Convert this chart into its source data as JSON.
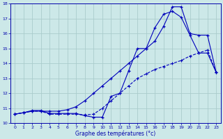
{
  "xlabel": "Graphe des températures (°c)",
  "bg_color": "#cce8e8",
  "grid_color": "#aacccc",
  "line_color": "#0000bb",
  "xlim": [
    -0.5,
    23.5
  ],
  "ylim": [
    10,
    18
  ],
  "yticks": [
    10,
    11,
    12,
    13,
    14,
    15,
    16,
    17,
    18
  ],
  "xticks": [
    0,
    1,
    2,
    3,
    4,
    5,
    6,
    7,
    8,
    9,
    10,
    11,
    12,
    13,
    14,
    15,
    16,
    17,
    18,
    19,
    20,
    21,
    22,
    23
  ],
  "x": [
    0,
    1,
    2,
    3,
    4,
    5,
    6,
    7,
    8,
    9,
    10,
    11,
    12,
    13,
    14,
    15,
    16,
    17,
    18,
    19,
    20,
    21,
    22,
    23
  ],
  "y_slow": [
    10.6,
    10.7,
    10.8,
    10.8,
    10.6,
    10.6,
    10.6,
    10.6,
    10.55,
    10.6,
    11.0,
    11.5,
    12.0,
    12.5,
    13.0,
    13.3,
    13.6,
    13.8,
    14.0,
    14.2,
    14.5,
    14.7,
    14.9,
    13.4
  ],
  "y_sharp": [
    10.6,
    10.7,
    10.85,
    10.85,
    10.65,
    10.65,
    10.65,
    10.65,
    10.5,
    10.4,
    10.4,
    11.8,
    12.0,
    13.5,
    15.0,
    15.0,
    16.4,
    17.3,
    17.5,
    17.1,
    15.9,
    14.7,
    14.7,
    13.4
  ],
  "y_smooth": [
    10.6,
    10.7,
    10.8,
    10.8,
    10.8,
    10.8,
    10.9,
    11.1,
    11.5,
    12.0,
    12.5,
    13.0,
    13.5,
    14.0,
    14.5,
    15.0,
    15.5,
    16.5,
    17.8,
    17.8,
    16.0,
    15.9,
    15.9,
    13.4
  ]
}
